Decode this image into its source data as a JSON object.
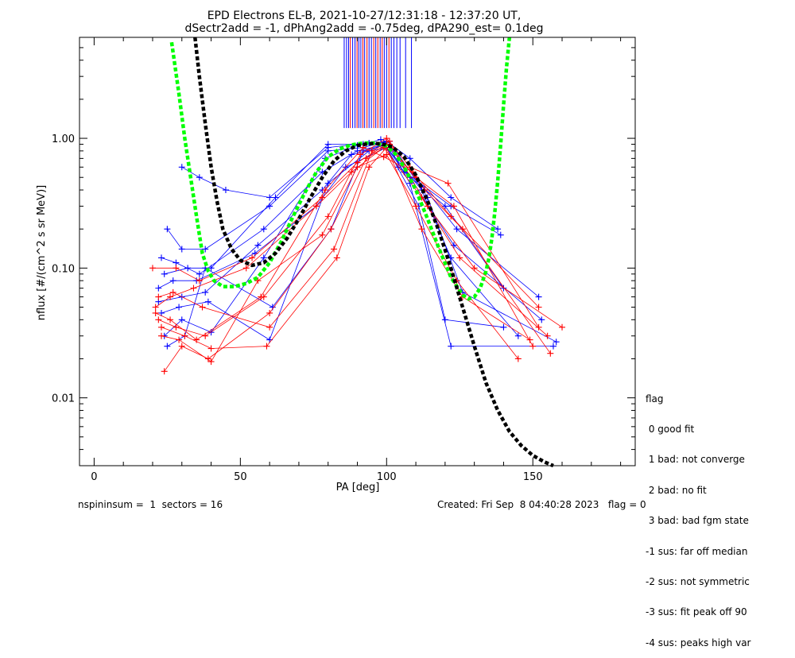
{
  "chart_data": {
    "type": "line",
    "title_line1": "EPD Electrons EL-B, 2021-10-27/12:31:18 - 12:37:20 UT,",
    "title_line2": "dSectr2add = -1, dPhAng2add = -0.75deg, dPA290_est=   0.1deg",
    "xlabel": "PA [deg]",
    "ylabel": "nflux [#/(cm^2 s sr MeV)]",
    "xlim": [
      -5,
      185
    ],
    "ylim": [
      0.003,
      6.0
    ],
    "yscale": "log",
    "xticks": [
      0,
      50,
      100,
      150
    ],
    "xtick_labels": [
      "0",
      "50",
      "100",
      "150"
    ],
    "yticks": [
      1.0,
      0.1,
      0.01
    ],
    "ytick_labels": [
      "1.00",
      "0.10",
      "0.01"
    ],
    "grid": false,
    "colors": {
      "red": "#ff0000",
      "blue": "#0000ff",
      "green": "#00ff00",
      "black": "#000000"
    },
    "fits": [
      {
        "color": "#00ff00",
        "x": [
          26.5,
          29,
          31,
          33,
          35,
          37,
          39,
          41,
          44,
          48,
          52,
          56,
          60,
          64,
          68,
          72,
          76,
          80,
          84,
          88,
          92,
          96,
          100,
          103,
          106,
          110,
          114,
          118,
          122,
          126,
          128,
          130,
          132,
          134,
          135,
          136,
          137,
          138,
          139,
          140,
          141,
          142
        ],
        "y": [
          5.5,
          2.2,
          1.0,
          0.5,
          0.25,
          0.13,
          0.095,
          0.08,
          0.072,
          0.072,
          0.076,
          0.085,
          0.11,
          0.16,
          0.25,
          0.38,
          0.55,
          0.72,
          0.83,
          0.89,
          0.92,
          0.92,
          0.87,
          0.76,
          0.6,
          0.4,
          0.24,
          0.14,
          0.085,
          0.062,
          0.058,
          0.06,
          0.07,
          0.095,
          0.12,
          0.17,
          0.27,
          0.47,
          0.9,
          1.8,
          3.5,
          6.0
        ]
      },
      {
        "color": "#000000",
        "x": [
          34.5,
          36,
          38,
          40,
          42,
          44,
          47,
          50,
          54,
          58,
          62,
          66,
          70,
          74,
          78,
          82,
          86,
          90,
          94,
          98,
          102,
          106,
          110,
          114,
          118,
          122,
          126,
          130,
          134,
          138,
          142,
          146,
          150,
          154,
          157
        ],
        "y": [
          6.0,
          3.0,
          1.3,
          0.6,
          0.33,
          0.2,
          0.14,
          0.115,
          0.105,
          0.11,
          0.13,
          0.17,
          0.24,
          0.35,
          0.5,
          0.67,
          0.8,
          0.88,
          0.91,
          0.91,
          0.86,
          0.72,
          0.52,
          0.33,
          0.19,
          0.1,
          0.05,
          0.025,
          0.013,
          0.008,
          0.0055,
          0.0043,
          0.0036,
          0.0032,
          0.003
        ]
      }
    ],
    "vlines": {
      "y_from": 1.2,
      "y_to": 6.0,
      "lines": [
        {
          "x": 85.5,
          "c": "#0000ff"
        },
        {
          "x": 86.3,
          "c": "#0000ff"
        },
        {
          "x": 87.0,
          "c": "#0000ff"
        },
        {
          "x": 87.6,
          "c": "#ff0000"
        },
        {
          "x": 88.4,
          "c": "#0000ff"
        },
        {
          "x": 89.2,
          "c": "#0000ff"
        },
        {
          "x": 89.9,
          "c": "#ff0000"
        },
        {
          "x": 90.5,
          "c": "#0000ff"
        },
        {
          "x": 91.2,
          "c": "#0000ff"
        },
        {
          "x": 91.9,
          "c": "#ff0000"
        },
        {
          "x": 92.5,
          "c": "#0000ff"
        },
        {
          "x": 93.3,
          "c": "#ff0000"
        },
        {
          "x": 94.0,
          "c": "#0000ff"
        },
        {
          "x": 94.8,
          "c": "#0000ff"
        },
        {
          "x": 95.6,
          "c": "#ff0000"
        },
        {
          "x": 96.3,
          "c": "#0000ff"
        },
        {
          "x": 97.0,
          "c": "#ff0000"
        },
        {
          "x": 97.8,
          "c": "#0000ff"
        },
        {
          "x": 98.5,
          "c": "#ff0000"
        },
        {
          "x": 99.2,
          "c": "#0000ff"
        },
        {
          "x": 100.0,
          "c": "#0000ff"
        },
        {
          "x": 100.8,
          "c": "#ff0000"
        },
        {
          "x": 101.6,
          "c": "#0000ff"
        },
        {
          "x": 102.5,
          "c": "#0000ff"
        },
        {
          "x": 103.5,
          "c": "#0000ff"
        },
        {
          "x": 104.6,
          "c": "#0000ff"
        },
        {
          "x": 106.5,
          "c": "#0000ff"
        },
        {
          "x": 108.5,
          "c": "#0000ff"
        }
      ]
    },
    "curves": [
      {
        "color": "#0000ff",
        "x": [
          25,
          30,
          38,
          60,
          80,
          92,
          100,
          108,
          122,
          138
        ],
        "y": [
          0.2,
          0.14,
          0.14,
          0.3,
          0.8,
          0.85,
          0.95,
          0.7,
          0.35,
          0.2
        ]
      },
      {
        "color": "#0000ff",
        "x": [
          23,
          28,
          36,
          58,
          78,
          90,
          100,
          110,
          124,
          152
        ],
        "y": [
          0.12,
          0.11,
          0.09,
          0.2,
          0.55,
          0.8,
          0.9,
          0.5,
          0.2,
          0.06
        ]
      },
      {
        "color": "#0000ff",
        "x": [
          24,
          32,
          40,
          62,
          80,
          92,
          99,
          106,
          120,
          140
        ],
        "y": [
          0.09,
          0.1,
          0.1,
          0.35,
          0.9,
          0.9,
          0.92,
          0.55,
          0.3,
          0.07
        ]
      },
      {
        "color": "#0000ff",
        "x": [
          22,
          30,
          38,
          56,
          78,
          88,
          100,
          112,
          122,
          145
        ],
        "y": [
          0.055,
          0.06,
          0.065,
          0.15,
          0.4,
          0.75,
          0.85,
          0.4,
          0.12,
          0.03
        ]
      },
      {
        "color": "#0000ff",
        "x": [
          23,
          29,
          39,
          60,
          80,
          94,
          101,
          114,
          126,
          158
        ],
        "y": [
          0.045,
          0.05,
          0.055,
          0.028,
          0.45,
          0.8,
          0.95,
          0.35,
          0.065,
          0.027
        ]
      },
      {
        "color": "#0000ff",
        "x": [
          24,
          30,
          40,
          58,
          79,
          90,
          100,
          108,
          122,
          157
        ],
        "y": [
          0.03,
          0.04,
          0.032,
          0.12,
          0.7,
          0.88,
          0.93,
          0.45,
          0.025,
          0.025
        ]
      },
      {
        "color": "#0000ff",
        "x": [
          30,
          36,
          45,
          60,
          80,
          94,
          98,
          104,
          122,
          139
        ],
        "y": [
          0.6,
          0.5,
          0.4,
          0.35,
          0.85,
          0.92,
          0.98,
          0.6,
          0.3,
          0.18
        ]
      },
      {
        "color": "#0000ff",
        "x": [
          22,
          27,
          35,
          55,
          76,
          86,
          100,
          111,
          120,
          140
        ],
        "y": [
          0.07,
          0.08,
          0.08,
          0.13,
          0.3,
          0.6,
          0.85,
          0.3,
          0.04,
          0.035
        ]
      },
      {
        "color": "#0000ff",
        "x": [
          25,
          31,
          38,
          61,
          81,
          92,
          101,
          108,
          123,
          153
        ],
        "y": [
          0.025,
          0.03,
          0.1,
          0.05,
          0.2,
          0.8,
          0.9,
          0.5,
          0.15,
          0.04
        ]
      },
      {
        "color": "#ff0000",
        "x": [
          20,
          28,
          36,
          54,
          78,
          90,
          100,
          110,
          123,
          150
        ],
        "y": [
          0.1,
          0.1,
          0.08,
          0.12,
          0.35,
          0.65,
          0.9,
          0.5,
          0.3,
          0.025
        ]
      },
      {
        "color": "#ff0000",
        "x": [
          21,
          26,
          34,
          52,
          76,
          88,
          99,
          112,
          125,
          155
        ],
        "y": [
          0.05,
          0.06,
          0.07,
          0.1,
          0.3,
          0.55,
          0.85,
          0.35,
          0.12,
          0.03
        ]
      },
      {
        "color": "#ff0000",
        "x": [
          22,
          28,
          38,
          58,
          80,
          91,
          100,
          108,
          121,
          152
        ],
        "y": [
          0.04,
          0.035,
          0.03,
          0.06,
          0.25,
          0.75,
          1.0,
          0.6,
          0.45,
          0.035
        ]
      },
      {
        "color": "#ff0000",
        "x": [
          24,
          30,
          39,
          60,
          81,
          93,
          101,
          113,
          126,
          156
        ],
        "y": [
          0.016,
          0.025,
          0.02,
          0.045,
          0.2,
          0.7,
          0.9,
          0.4,
          0.2,
          0.022
        ]
      },
      {
        "color": "#ff0000",
        "x": [
          23,
          29,
          40,
          56,
          78,
          90,
          100,
          110,
          124,
          145
        ],
        "y": [
          0.03,
          0.028,
          0.019,
          0.08,
          0.18,
          0.6,
          0.75,
          0.3,
          0.08,
          0.02
        ]
      },
      {
        "color": "#ff0000",
        "x": [
          22,
          27,
          37,
          60,
          82,
          95,
          101,
          114,
          130,
          160
        ],
        "y": [
          0.06,
          0.065,
          0.05,
          0.035,
          0.14,
          0.8,
          0.95,
          0.3,
          0.1,
          0.035
        ]
      },
      {
        "color": "#ff0000",
        "x": [
          21,
          26,
          35,
          57,
          79,
          92,
          99,
          109,
          122,
          152
        ],
        "y": [
          0.045,
          0.04,
          0.028,
          0.06,
          0.4,
          0.85,
          0.72,
          0.55,
          0.25,
          0.05
        ]
      },
      {
        "color": "#ff0000",
        "x": [
          23,
          31,
          40,
          59,
          83,
          94,
          100,
          112,
          126,
          149
        ],
        "y": [
          0.035,
          0.03,
          0.024,
          0.025,
          0.12,
          0.6,
          0.85,
          0.2,
          0.06,
          0.028
        ]
      }
    ],
    "legend": [
      "flag",
      " 0 good fit",
      " 1 bad: not converge",
      " 2 bad: no fit",
      " 3 bad: bad fgm state",
      "-1 sus: far off median",
      "-2 sus: not symmetric",
      "-3 sus: fit peak off 90",
      "-4 sus: peaks high var"
    ],
    "legend_placement": "right-bottom"
  },
  "footer": {
    "left": "nspininsum =  1  sectors = 16",
    "right": "Created: Fri Sep  8 04:40:28 2023   flag = 0"
  }
}
